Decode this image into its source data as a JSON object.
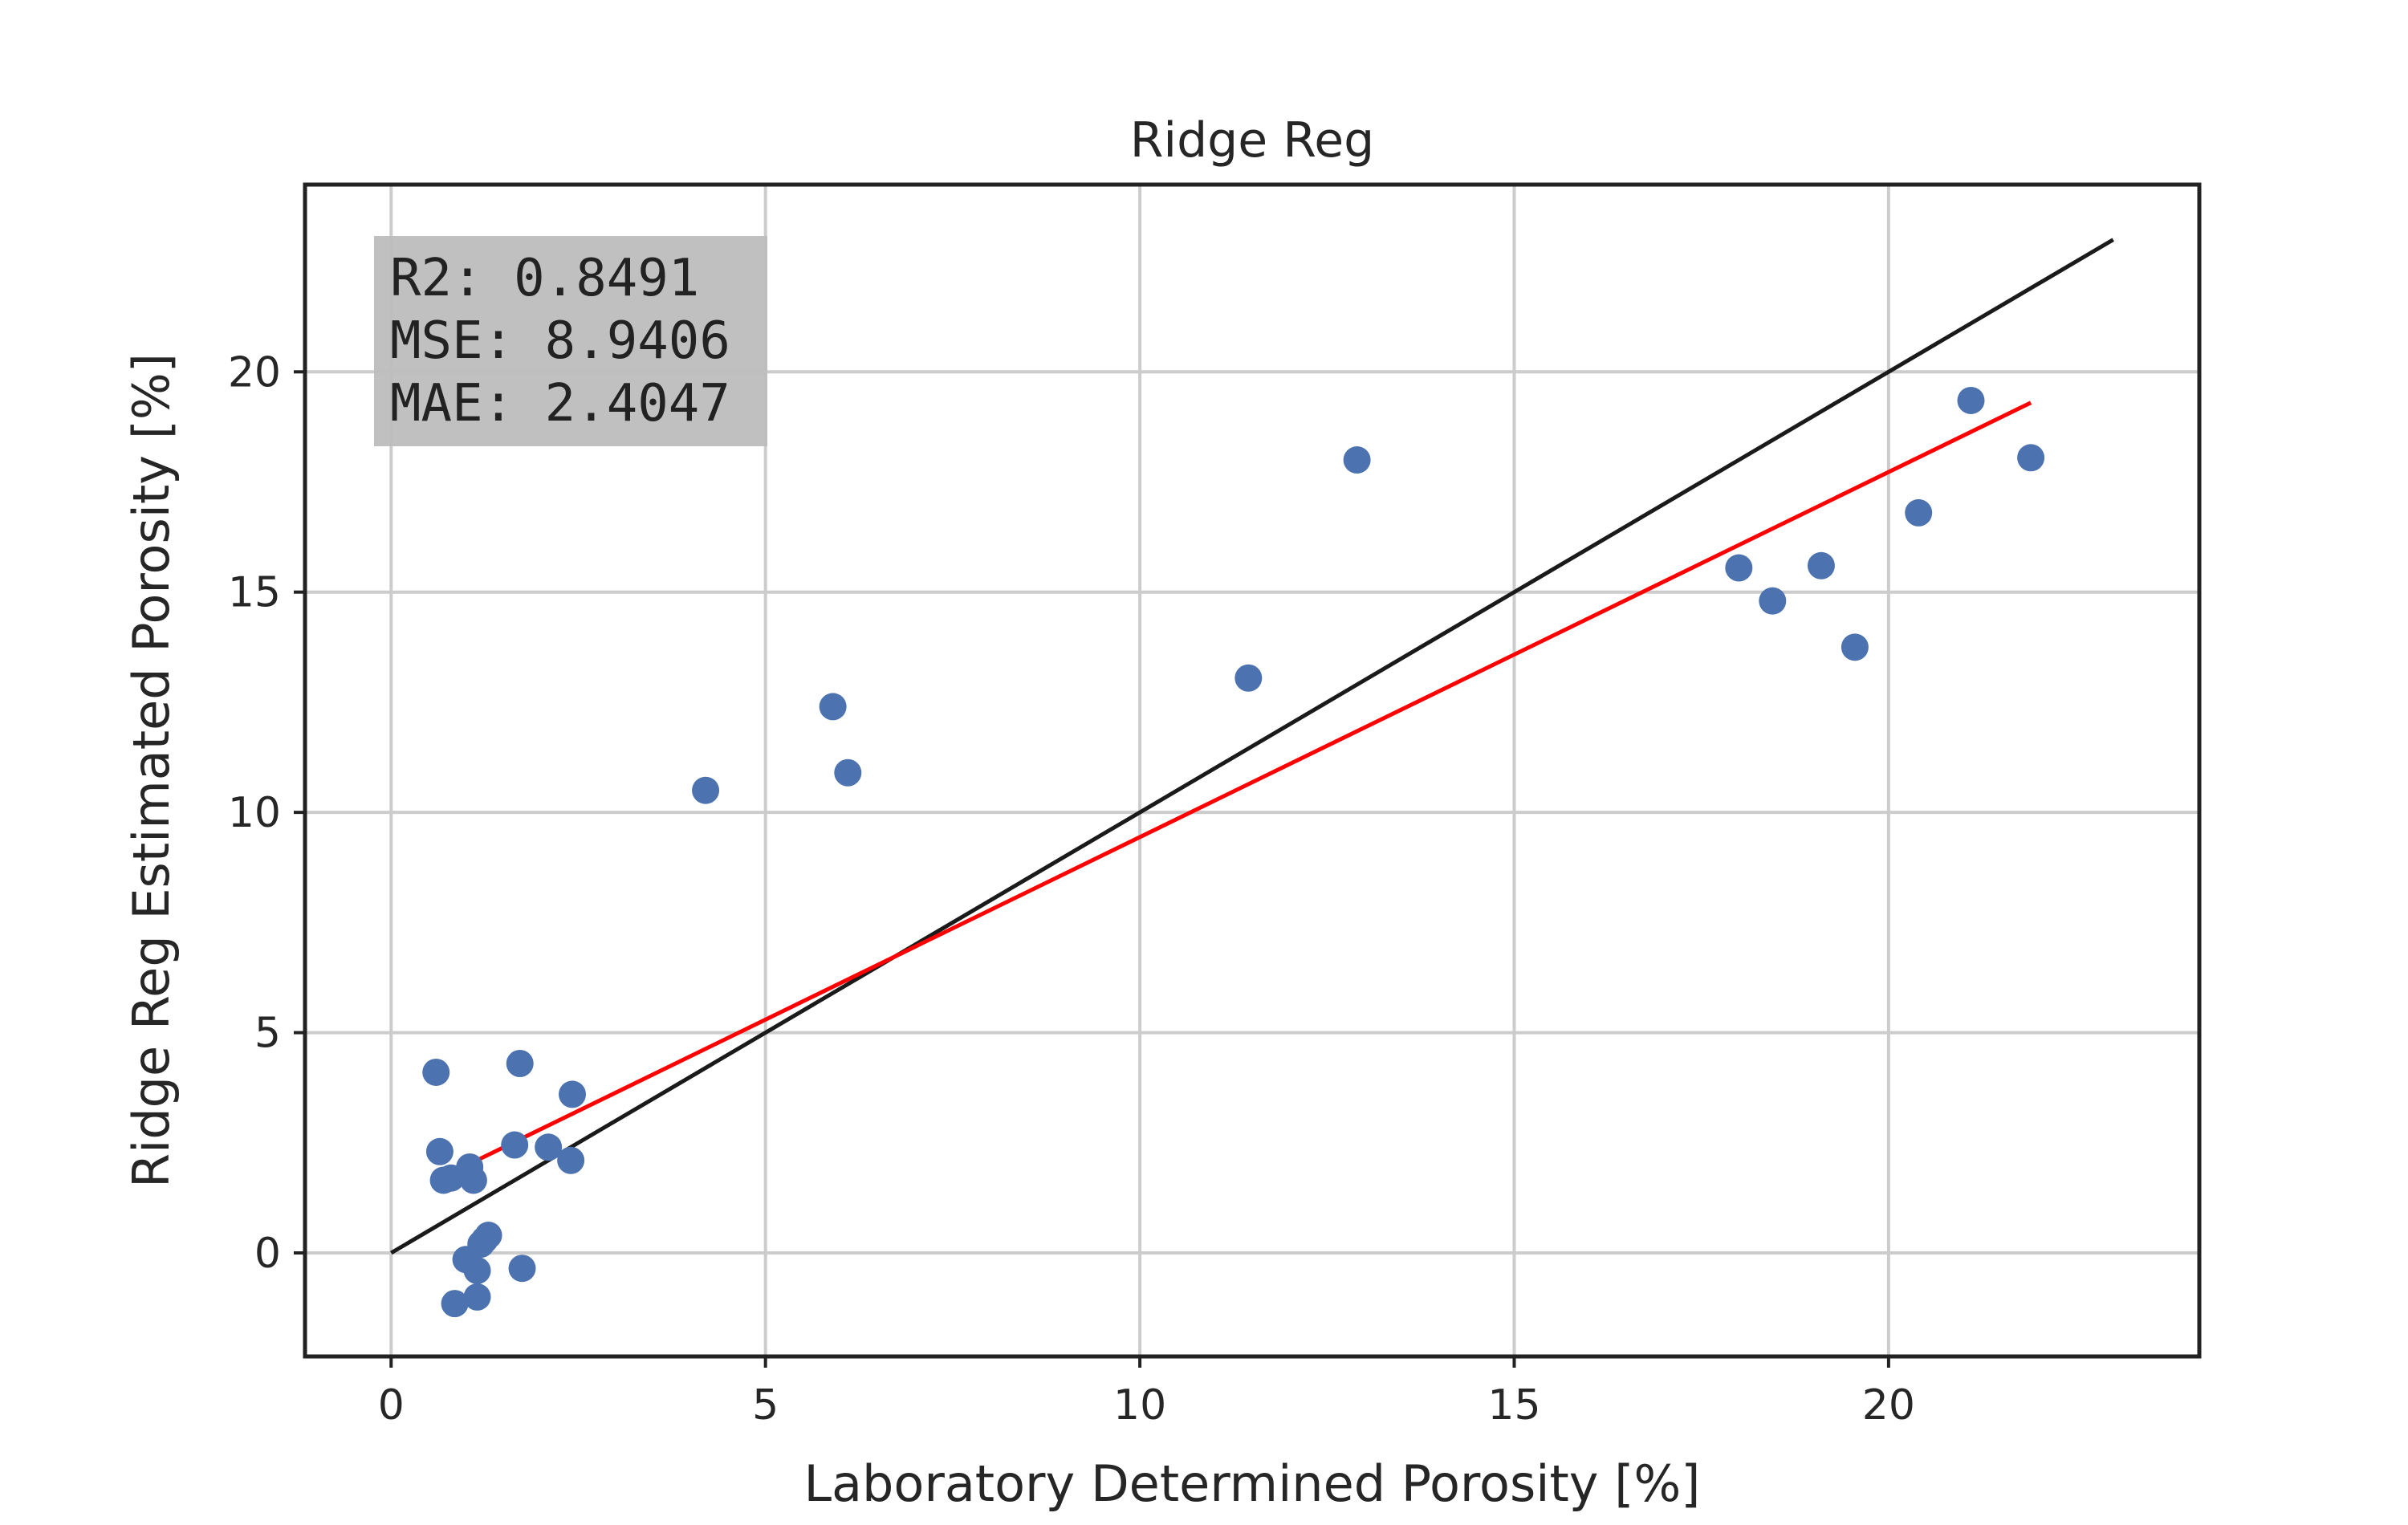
{
  "chart_data": {
    "type": "scatter",
    "title": "Ridge Reg",
    "xlabel": "Laboratory Determined Porosity [%]",
    "ylabel": "Ridge Reg Estimated Porosity [%]",
    "xlim": [
      -1.15,
      24.15
    ],
    "ylim": [
      -2.35,
      24.25
    ],
    "x_ticks": [
      0,
      5,
      10,
      15,
      20
    ],
    "y_ticks": [
      0,
      5,
      10,
      15,
      20
    ],
    "grid": true,
    "colors": {
      "points": "#4c72b0",
      "fit_line": "#ff0000",
      "identity_line": "#1a1a1a",
      "grid": "#cccccc",
      "axes": "#222222",
      "stats_box": "#bdbdbd"
    },
    "stats": [
      "R2:  0.8491",
      "MSE: 8.9406",
      "MAE: 2.4047"
    ],
    "points": {
      "x": [
        0.6,
        0.65,
        0.7,
        0.8,
        0.85,
        1.0,
        1.05,
        1.1,
        1.15,
        1.15,
        1.2,
        1.25,
        1.3,
        1.65,
        1.72,
        1.75,
        2.1,
        2.4,
        2.42,
        4.2,
        5.9,
        6.1,
        11.45,
        12.9,
        18.0,
        18.45,
        19.1,
        19.55,
        20.4,
        21.1,
        21.9
      ],
      "y": [
        4.1,
        2.3,
        1.65,
        1.7,
        -1.15,
        -0.15,
        1.95,
        1.65,
        -0.4,
        -1.0,
        0.2,
        0.3,
        0.4,
        2.45,
        4.3,
        -0.35,
        2.4,
        2.1,
        3.6,
        10.5,
        12.4,
        10.9,
        13.05,
        18.0,
        15.55,
        14.8,
        15.6,
        13.75,
        16.8,
        19.35,
        18.05
      ]
    },
    "fit_line": {
      "x": [
        0.6,
        21.9
      ],
      "y": [
        1.65,
        19.3
      ]
    },
    "identity_line": {
      "x": [
        0,
        23
      ],
      "y": [
        0,
        23
      ]
    }
  }
}
